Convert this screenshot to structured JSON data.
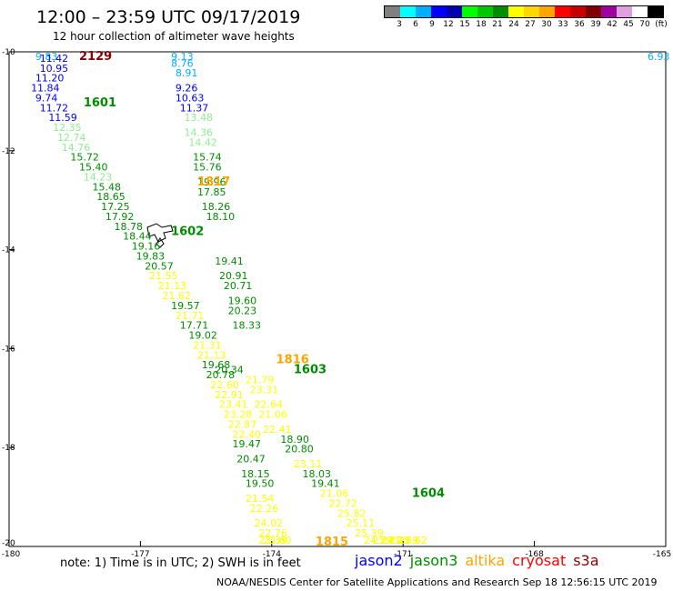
{
  "title": "12:00 – 23:59 UTC 09/17/2019",
  "subtitle": "12 hour collection of altimeter wave heights",
  "colorbar": {
    "colors": [
      "#808080",
      "#00ffff",
      "#00b0ff",
      "#0000ff",
      "#0000b0",
      "#00ff00",
      "#00c800",
      "#008c00",
      "#ffff00",
      "#ffd700",
      "#ffa500",
      "#ff0000",
      "#c80000",
      "#800000",
      "#a000a0",
      "#e0a0e0",
      "#ffffff",
      "#000000"
    ],
    "labels": [
      "3",
      "6",
      "9",
      "12",
      "15",
      "18",
      "21",
      "24",
      "27",
      "30",
      "33",
      "36",
      "39",
      "42",
      "45",
      "70",
      "(ft)"
    ]
  },
  "axes": {
    "lon_ticks": [
      "-180",
      "-177",
      "-174",
      "-171",
      "-168",
      "-165"
    ],
    "lat_ticks": [
      "-10",
      "-12",
      "-14",
      "-16",
      "-18",
      "-20"
    ]
  },
  "time_labels": [
    {
      "text": "2129",
      "color": "#8b0000",
      "lon": -178.4,
      "lat": -10.0
    },
    {
      "text": "1601",
      "color": "#008c00",
      "lon": -178.3,
      "lat": -11.1
    },
    {
      "text": "1817",
      "color": "#ffa500",
      "lon": -175.7,
      "lat": -12.7
    },
    {
      "text": "1602",
      "color": "#008c00",
      "lon": -176.3,
      "lat": -13.7
    },
    {
      "text": "1816",
      "color": "#ffa500",
      "lon": -173.9,
      "lat": -16.3
    },
    {
      "text": "1603",
      "color": "#008c00",
      "lon": -173.5,
      "lat": -16.5
    },
    {
      "text": "1604",
      "color": "#008c00",
      "lon": -170.8,
      "lat": -19.0
    },
    {
      "text": "1815",
      "color": "#ffa500",
      "lon": -173.0,
      "lat": -20.0
    }
  ],
  "value_labels": [
    {
      "text": "9.83",
      "color": "#00b0ff",
      "lon": -179.4,
      "lat": -10.0
    },
    {
      "text": "11.42",
      "color": "#0000ff",
      "lon": -179.3,
      "lat": -10.2
    },
    {
      "text": "10.95",
      "color": "#0000ff",
      "lon": -179.3,
      "lat": -10.4
    },
    {
      "text": "11.20",
      "color": "#0000ff",
      "lon": -179.4,
      "lat": -10.6
    },
    {
      "text": "11.84",
      "color": "#0000ff",
      "lon": -179.5,
      "lat": -10.8
    },
    {
      "text": "9.74",
      "color": "#0000ff",
      "lon": -179.4,
      "lat": -11.0
    },
    {
      "text": "11.72",
      "color": "#0000ff",
      "lon": -179.3,
      "lat": -11.2
    },
    {
      "text": "11.59",
      "color": "#0000ff",
      "lon": -179.1,
      "lat": -11.4
    },
    {
      "text": "12.35",
      "color": "#90ee90",
      "lon": -179.0,
      "lat": -11.6
    },
    {
      "text": "12.74",
      "color": "#90ee90",
      "lon": -178.9,
      "lat": -11.8
    },
    {
      "text": "14.76",
      "color": "#90ee90",
      "lon": -178.8,
      "lat": -12.0
    },
    {
      "text": "15.72",
      "color": "#008c00",
      "lon": -178.6,
      "lat": -12.2
    },
    {
      "text": "15.40",
      "color": "#008c00",
      "lon": -178.4,
      "lat": -12.4
    },
    {
      "text": "14.23",
      "color": "#90ee90",
      "lon": -178.3,
      "lat": -12.6
    },
    {
      "text": "15.48",
      "color": "#008c00",
      "lon": -178.1,
      "lat": -12.8
    },
    {
      "text": "18.65",
      "color": "#008c00",
      "lon": -178.0,
      "lat": -13.0
    },
    {
      "text": "17.25",
      "color": "#008c00",
      "lon": -177.9,
      "lat": -13.2
    },
    {
      "text": "17.92",
      "color": "#008c00",
      "lon": -177.8,
      "lat": -13.4
    },
    {
      "text": "18.78",
      "color": "#008c00",
      "lon": -177.6,
      "lat": -13.6
    },
    {
      "text": "18.44",
      "color": "#008c00",
      "lon": -177.4,
      "lat": -13.8
    },
    {
      "text": "19.16",
      "color": "#008c00",
      "lon": -177.2,
      "lat": -14.0
    },
    {
      "text": "19.83",
      "color": "#008c00",
      "lon": -177.1,
      "lat": -14.2
    },
    {
      "text": "20.57",
      "color": "#008c00",
      "lon": -176.9,
      "lat": -14.4
    },
    {
      "text": "21.55",
      "color": "#ffff00",
      "lon": -176.8,
      "lat": -14.6
    },
    {
      "text": "21.13",
      "color": "#ffff00",
      "lon": -176.6,
      "lat": -14.8
    },
    {
      "text": "21.62",
      "color": "#ffff00",
      "lon": -176.5,
      "lat": -15.0
    },
    {
      "text": "19.57",
      "color": "#008c00",
      "lon": -176.3,
      "lat": -15.2
    },
    {
      "text": "21.71",
      "color": "#ffff00",
      "lon": -176.2,
      "lat": -15.4
    },
    {
      "text": "17.71",
      "color": "#008c00",
      "lon": -176.1,
      "lat": -15.6
    },
    {
      "text": "19.02",
      "color": "#008c00",
      "lon": -175.9,
      "lat": -15.8
    },
    {
      "text": "21.31",
      "color": "#ffff00",
      "lon": -175.8,
      "lat": -16.0
    },
    {
      "text": "21.13",
      "color": "#ffff00",
      "lon": -175.7,
      "lat": -16.2
    },
    {
      "text": "19.68",
      "color": "#008c00",
      "lon": -175.6,
      "lat": -16.4
    },
    {
      "text": "20.78",
      "color": "#008c00",
      "lon": -175.5,
      "lat": -16.6
    },
    {
      "text": "22.60",
      "color": "#ffff00",
      "lon": -175.4,
      "lat": -16.8
    },
    {
      "text": "22.91",
      "color": "#ffff00",
      "lon": -175.3,
      "lat": -17.0
    },
    {
      "text": "23.41",
      "color": "#ffff00",
      "lon": -175.2,
      "lat": -17.2
    },
    {
      "text": "23.28",
      "color": "#ffff00",
      "lon": -175.1,
      "lat": -17.4
    },
    {
      "text": "22.87",
      "color": "#ffff00",
      "lon": -175.0,
      "lat": -17.6
    },
    {
      "text": "22.40",
      "color": "#ffff00",
      "lon": -174.9,
      "lat": -17.8
    },
    {
      "text": "19.47",
      "color": "#008c00",
      "lon": -174.9,
      "lat": -18.0
    },
    {
      "text": "20.47",
      "color": "#008c00",
      "lon": -174.8,
      "lat": -18.3
    },
    {
      "text": "18.15",
      "color": "#008c00",
      "lon": -174.7,
      "lat": -18.6
    },
    {
      "text": "19.50",
      "color": "#008c00",
      "lon": -174.6,
      "lat": -18.8
    },
    {
      "text": "21.54",
      "color": "#ffff00",
      "lon": -174.6,
      "lat": -19.1
    },
    {
      "text": "22.26",
      "color": "#ffff00",
      "lon": -174.5,
      "lat": -19.3
    },
    {
      "text": "24.02",
      "color": "#ffff00",
      "lon": -174.4,
      "lat": -19.6
    },
    {
      "text": "22.76",
      "color": "#ffff00",
      "lon": -174.3,
      "lat": -19.8
    },
    {
      "text": "23.60",
      "color": "#ffff00",
      "lon": -174.2,
      "lat": -20.0
    },
    {
      "text": "23.39",
      "color": "#ffff00",
      "lon": -174.3,
      "lat": -20.2
    },
    {
      "text": "9.13",
      "color": "#00b0ff",
      "lon": -176.3,
      "lat": -10.0
    },
    {
      "text": "8.76",
      "color": "#00b0ff",
      "lon": -176.3,
      "lat": -10.3
    },
    {
      "text": "8.91",
      "color": "#00b0ff",
      "lon": -176.2,
      "lat": -10.5
    },
    {
      "text": "9.26",
      "color": "#0000ff",
      "lon": -176.2,
      "lat": -10.8
    },
    {
      "text": "10.63",
      "color": "#0000ff",
      "lon": -176.2,
      "lat": -11.0
    },
    {
      "text": "11.37",
      "color": "#0000ff",
      "lon": -176.1,
      "lat": -11.2
    },
    {
      "text": "13.48",
      "color": "#90ee90",
      "lon": -176.0,
      "lat": -11.4
    },
    {
      "text": "14.36",
      "color": "#90ee90",
      "lon": -176.0,
      "lat": -11.7
    },
    {
      "text": "14.42",
      "color": "#90ee90",
      "lon": -175.9,
      "lat": -11.9
    },
    {
      "text": "15.74",
      "color": "#008c00",
      "lon": -175.8,
      "lat": -12.2
    },
    {
      "text": "15.76",
      "color": "#008c00",
      "lon": -175.8,
      "lat": -12.4
    },
    {
      "text": "19.96",
      "color": "#008c00",
      "lon": -175.7,
      "lat": -12.7
    },
    {
      "text": "17.85",
      "color": "#008c00",
      "lon": -175.7,
      "lat": -12.9
    },
    {
      "text": "18.26",
      "color": "#008c00",
      "lon": -175.6,
      "lat": -13.2
    },
    {
      "text": "18.10",
      "color": "#008c00",
      "lon": -175.5,
      "lat": -13.4
    },
    {
      "text": "19.41",
      "color": "#008c00",
      "lon": -175.3,
      "lat": -14.3
    },
    {
      "text": "20.91",
      "color": "#008c00",
      "lon": -175.2,
      "lat": -14.6
    },
    {
      "text": "20.71",
      "color": "#008c00",
      "lon": -175.1,
      "lat": -14.8
    },
    {
      "text": "19.60",
      "color": "#008c00",
      "lon": -175.0,
      "lat": -15.1
    },
    {
      "text": "20.23",
      "color": "#008c00",
      "lon": -175.0,
      "lat": -15.3
    },
    {
      "text": "18.33",
      "color": "#008c00",
      "lon": -174.9,
      "lat": -15.6
    },
    {
      "text": "21.79",
      "color": "#ffff00",
      "lon": -174.6,
      "lat": -16.7
    },
    {
      "text": "23.31",
      "color": "#ffff00",
      "lon": -174.5,
      "lat": -16.9
    },
    {
      "text": "22.64",
      "color": "#ffff00",
      "lon": -174.4,
      "lat": -17.2
    },
    {
      "text": "21.06",
      "color": "#ffff00",
      "lon": -174.3,
      "lat": -17.4
    },
    {
      "text": "22.41",
      "color": "#ffff00",
      "lon": -174.2,
      "lat": -17.7
    },
    {
      "text": "18.90",
      "color": "#008c00",
      "lon": -173.8,
      "lat": -17.9
    },
    {
      "text": "20.80",
      "color": "#008c00",
      "lon": -173.7,
      "lat": -18.1
    },
    {
      "text": "23.11",
      "color": "#ffff00",
      "lon": -173.5,
      "lat": -18.4
    },
    {
      "text": "18.03",
      "color": "#008c00",
      "lon": -173.3,
      "lat": -18.6
    },
    {
      "text": "19.41",
      "color": "#008c00",
      "lon": -173.1,
      "lat": -18.8
    },
    {
      "text": "21.06",
      "color": "#ffff00",
      "lon": -172.9,
      "lat": -19.0
    },
    {
      "text": "22.72",
      "color": "#ffff00",
      "lon": -172.7,
      "lat": -19.2
    },
    {
      "text": "25.82",
      "color": "#ffff00",
      "lon": -172.5,
      "lat": -19.4
    },
    {
      "text": "25.11",
      "color": "#ffff00",
      "lon": -172.3,
      "lat": -19.6
    },
    {
      "text": "25.39",
      "color": "#ffff00",
      "lon": -172.1,
      "lat": -19.8
    },
    {
      "text": "24.29",
      "color": "#ffff00",
      "lon": -171.9,
      "lat": -20.0
    },
    {
      "text": "25.71",
      "color": "#ffff00",
      "lon": -171.7,
      "lat": -20.2
    },
    {
      "text": "24.25",
      "color": "#ffff00",
      "lon": -171.5,
      "lat": -20.4
    },
    {
      "text": "22.69",
      "color": "#ffff00",
      "lon": -171.3,
      "lat": -20.6
    },
    {
      "text": "22.62",
      "color": "#ffff00",
      "lon": -171.1,
      "lat": -20.8
    },
    {
      "text": "20.34",
      "color": "#008c00",
      "lon": -175.3,
      "lat": -16.5
    },
    {
      "text": "6.93",
      "color": "#00b0ff",
      "lon": -165.2,
      "lat": -10.0
    }
  ],
  "note": "note: 1) Time is in UTC; 2) SWH is in feet",
  "satellites": [
    {
      "name": "jason2",
      "color": "#0000ff"
    },
    {
      "name": "jason3",
      "color": "#008c00"
    },
    {
      "name": "altika",
      "color": "#ffa500"
    },
    {
      "name": "cryosat",
      "color": "#ff0000"
    },
    {
      "name": "s3a",
      "color": "#8b0000"
    }
  ],
  "footer": "NOAA/NESDIS Center for Satellite Applications and Research   Sep 18 12:56:15 UTC 2019"
}
